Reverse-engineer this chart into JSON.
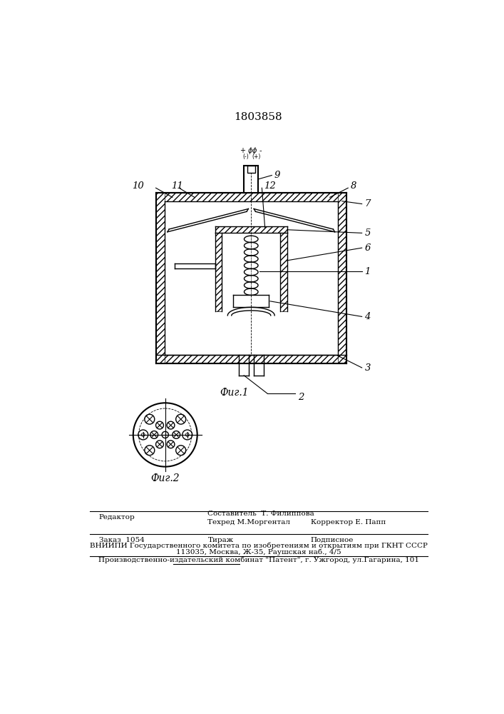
{
  "patent_number": "1803858",
  "fig1_label": "Фиг.1",
  "fig2_label": "Фиг.2",
  "editor_line": "Редактор",
  "compiler_line": "Составитель  Т. Филиппова",
  "techred_line": "Техред М.Моргентал",
  "corrector_line": "Корректор Е. Папп",
  "order_line": "Заказ  1054",
  "tirazh_line": "Тираж",
  "podpisnoe_line": "Подписное",
  "vniiipi_line": "ВНИИПИ Государственного комитета по изобретениям и открытиям при ГКНТ СССР",
  "address_line": "113035, Москва, Ж-35, Раушская наб., 4/5",
  "publisher_line": "Производственно-издательский комбинат \"Патент\", г. Ужгород, ул.Гагарина, 101",
  "bg_color": "#ffffff",
  "line_color": "#000000"
}
